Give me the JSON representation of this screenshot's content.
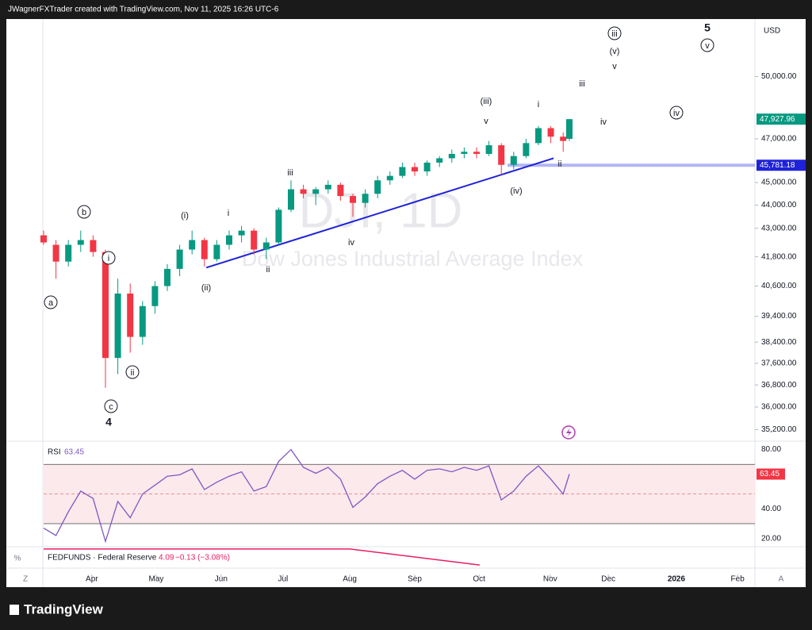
{
  "header": "JWagnerFXTrader created with TradingView.com, Nov 11, 2025 16:26 UTC-6",
  "brand": "TradingView",
  "chart_data": {
    "type": "candlestick",
    "title": "DJI, 1D",
    "subtitle": "Dow Jones Industrial Average Index",
    "currency": "USD",
    "log_scale": true,
    "up_color": "#089981",
    "down_color": "#f23645",
    "x": [
      0,
      4,
      8,
      12,
      16,
      20,
      24,
      28,
      32,
      36,
      40,
      44,
      48,
      52,
      56,
      60,
      64,
      68,
      72,
      76,
      80,
      84,
      88,
      92,
      96,
      100,
      104,
      108,
      112,
      116,
      120,
      124,
      128,
      132,
      136,
      140,
      144,
      148,
      152,
      156,
      160,
      164,
      168,
      170
    ],
    "open": [
      42700,
      42300,
      41600,
      42300,
      42500,
      42000,
      37800,
      40300,
      38600,
      39800,
      40600,
      41300,
      42100,
      42500,
      41700,
      42300,
      42700,
      42900,
      42100,
      42400,
      43800,
      44700,
      44500,
      44700,
      44900,
      44400,
      44100,
      44500,
      45100,
      45300,
      45700,
      45500,
      45900,
      46100,
      46300,
      46400,
      46300,
      46700,
      45800,
      46200,
      46800,
      47500,
      47100,
      47000
    ],
    "high": [
      42900,
      42500,
      42500,
      42900,
      42700,
      42100,
      40900,
      40700,
      40000,
      40800,
      41500,
      42300,
      42900,
      42600,
      42500,
      42900,
      43100,
      43000,
      42600,
      43900,
      45100,
      44900,
      44800,
      45100,
      45000,
      44500,
      44700,
      45300,
      45500,
      45900,
      45900,
      46000,
      46200,
      46500,
      46600,
      46600,
      46900,
      46800,
      46400,
      47000,
      47600,
      47600,
      47300,
      47930
    ],
    "low": [
      42300,
      40900,
      41400,
      42000,
      41800,
      36700,
      37200,
      38000,
      38300,
      39500,
      40400,
      41000,
      41900,
      41400,
      41600,
      42100,
      42400,
      41900,
      41700,
      42300,
      43700,
      44300,
      44000,
      44500,
      44200,
      43500,
      43900,
      44300,
      44900,
      45200,
      45300,
      45300,
      45700,
      45900,
      46100,
      46100,
      46200,
      45300,
      45600,
      46100,
      46700,
      46800,
      46400,
      46900
    ],
    "close": [
      42400,
      41600,
      42300,
      42500,
      42000,
      37800,
      40300,
      38600,
      39800,
      40600,
      41300,
      42100,
      42500,
      41700,
      42300,
      42700,
      42900,
      42100,
      42400,
      43800,
      44700,
      44500,
      44700,
      44900,
      44400,
      44100,
      44500,
      45100,
      45300,
      45700,
      45500,
      45900,
      46100,
      46300,
      46400,
      46300,
      46700,
      45800,
      46200,
      46800,
      47500,
      47100,
      46900,
      47927.96
    ],
    "last_close_label": "47,927.96",
    "level": {
      "value": 45781.18,
      "label": "45,781.18",
      "color": "#b2b5f5"
    },
    "trendline": {
      "x": [
        52.6,
        164.9
      ],
      "values": [
        41350,
        46100
      ],
      "color": "#1e22d8"
    },
    "xlim": [
      0,
      230
    ],
    "ylim": [
      34800,
      52900
    ],
    "xticks": [
      {
        "value": 15.6,
        "label": "Apr"
      },
      {
        "value": 36.4,
        "label": "May"
      },
      {
        "value": 57.4,
        "label": "Jun"
      },
      {
        "value": 77.4,
        "label": "Jul"
      },
      {
        "value": 99,
        "label": "Aug"
      },
      {
        "value": 120,
        "label": "Sep"
      },
      {
        "value": 140.8,
        "label": "Oct"
      },
      {
        "value": 163.8,
        "label": "Nov"
      },
      {
        "value": 182.6,
        "label": "Dec"
      },
      {
        "value": 204.6,
        "label": "2026"
      },
      {
        "value": 224.4,
        "label": "Feb"
      }
    ],
    "yticks": [
      {
        "value": 50000,
        "label": "50,000.00"
      },
      {
        "value": 47000,
        "label": "47,000.00"
      },
      {
        "value": 45000,
        "label": "45,000.00"
      },
      {
        "value": 44000,
        "label": "44,000.00"
      },
      {
        "value": 43000,
        "label": "43,000.00"
      },
      {
        "value": 41800,
        "label": "41,800.00"
      },
      {
        "value": 40600,
        "label": "40,600.00"
      },
      {
        "value": 39400,
        "label": "39,400.00"
      },
      {
        "value": 38400,
        "label": "38,400.00"
      },
      {
        "value": 37600,
        "label": "37,600.00"
      },
      {
        "value": 36800,
        "label": "36,800.00"
      },
      {
        "value": 36000,
        "label": "36,000.00"
      },
      {
        "value": 35200,
        "label": "35,200.00"
      }
    ],
    "wave_labels": [
      "a",
      "b",
      "i",
      "c",
      "4",
      "ii",
      "(i)",
      "(ii)",
      "i",
      "ii",
      "iii",
      "iv",
      "(iii)",
      "v",
      "(iv)",
      "i",
      "ii",
      "iii",
      "iv",
      "(v)",
      "v",
      "iii",
      "5",
      "v",
      "iv"
    ],
    "rsi": {
      "name": "RSI",
      "last_label": "63.45",
      "color": "#7e57c2",
      "values": [
        27,
        22,
        38,
        52,
        47,
        18,
        45,
        34,
        50,
        56,
        62,
        63,
        67,
        53,
        58,
        62,
        65,
        52,
        55,
        72,
        80,
        68,
        64,
        68,
        60,
        41,
        48,
        57,
        62,
        66,
        60,
        66,
        67,
        65,
        68,
        66,
        69,
        46,
        52,
        62,
        69,
        60,
        50,
        63.45
      ],
      "ylim": [
        15,
        84.6
      ],
      "yticks": [
        {
          "value": 80,
          "label": "80.00"
        },
        {
          "value": 40,
          "label": "40.00"
        },
        {
          "value": 20,
          "label": "20.00"
        }
      ],
      "bands": [
        70,
        50,
        30
      ]
    },
    "fed": {
      "name": "FEDFUNDS · Federal Reserve",
      "last": 4.09,
      "change_label": "−0.13 (−3.08%)",
      "color": "#e91e63",
      "x": [
        0,
        99,
        141
      ],
      "values": [
        4.33,
        4.33,
        4.09
      ],
      "ylim": [
        4.08,
        4.34
      ]
    },
    "corner_labels": [
      "Z",
      "%",
      "A"
    ]
  }
}
